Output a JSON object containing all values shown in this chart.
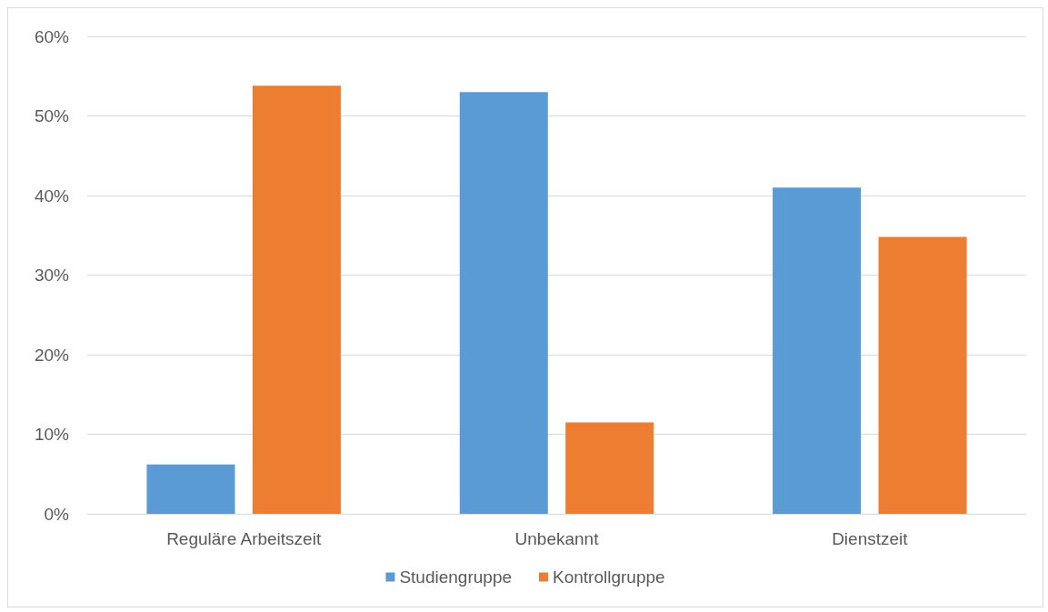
{
  "chart_data": {
    "type": "bar",
    "categories": [
      "Reguläre Arbeitszeit",
      "Unbekannt",
      "Dienstzeit"
    ],
    "series": [
      {
        "name": "Studiengruppe",
        "color": "#5b9bd5",
        "values": [
          6.2,
          53,
          41
        ]
      },
      {
        "name": "Kontrollgruppe",
        "color": "#ed7d31",
        "values": [
          53.8,
          11.5,
          34.8
        ]
      }
    ],
    "ylim": [
      0,
      60
    ],
    "yticks": [
      {
        "value": 0,
        "label": "0%"
      },
      {
        "value": 10,
        "label": "10%"
      },
      {
        "value": 20,
        "label": "20%"
      },
      {
        "value": 30,
        "label": "30%"
      },
      {
        "value": 40,
        "label": "40%"
      },
      {
        "value": 50,
        "label": "50%"
      },
      {
        "value": 60,
        "label": "60%"
      }
    ],
    "grid": "y",
    "legend": "bottom"
  }
}
